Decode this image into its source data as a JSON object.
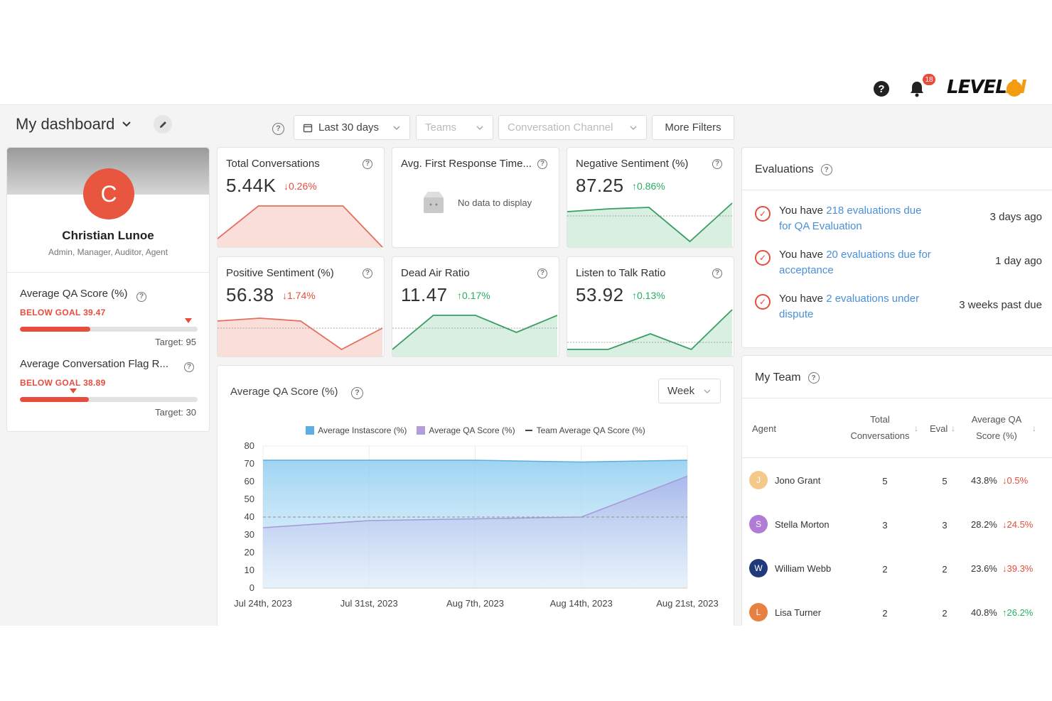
{
  "header": {
    "notifications_count": "18",
    "logo_main": "LEVEL",
    "logo_accent": "AI"
  },
  "toolbar": {
    "dashboard_title": "My dashboard",
    "date_filter": "Last 30 days",
    "teams_filter": "Teams",
    "channel_filter": "Conversation Channel",
    "more_filters": "More Filters"
  },
  "profile": {
    "initial": "C",
    "name": "Christian Lunoe",
    "roles": "Admin, Manager, Auditor, Agent",
    "goals": [
      {
        "label": "Average QA Score (%)",
        "status": "BELOW GOAL 39.47",
        "progress": 0.395,
        "target": "Target: 95"
      },
      {
        "label": "Average Conversation Flag R...",
        "status": "BELOW GOAL 38.89",
        "progress": 0.389,
        "target": "Target: 30"
      }
    ]
  },
  "metrics": {
    "total_conversations": {
      "title": "Total Conversations",
      "value": "5.44K",
      "delta": "↓0.26%"
    },
    "first_response": {
      "title": "Avg. First Response Time...",
      "empty": "No data to display"
    },
    "negative_sentiment": {
      "title": "Negative Sentiment (%)",
      "value": "87.25",
      "delta": "↑0.86%"
    },
    "positive_sentiment": {
      "title": "Positive Sentiment (%)",
      "value": "56.38",
      "delta": "↓1.74%"
    },
    "dead_air": {
      "title": "Dead Air Ratio",
      "value": "11.47",
      "delta": "↑0.17%"
    },
    "listen_talk": {
      "title": "Listen to Talk Ratio",
      "value": "53.92",
      "delta": "↑0.13%"
    }
  },
  "qa_chart": {
    "title": "Average QA Score (%)",
    "period": "Week",
    "legend": [
      "Average Instascore (%)",
      "Average QA Score (%)",
      "Team Average QA Score (%)"
    ]
  },
  "chart_data": {
    "type": "area",
    "title": "Average QA Score (%)",
    "categories": [
      "Jul 24th, 2023",
      "Jul 31st, 2023",
      "Aug 7th, 2023",
      "Aug 14th, 2023",
      "Aug 21st, 2023"
    ],
    "ylim": [
      0,
      80
    ],
    "yticks": [
      0,
      10,
      20,
      30,
      40,
      50,
      60,
      70,
      80
    ],
    "series": [
      {
        "name": "Average Instascore (%)",
        "values": [
          72,
          72,
          72,
          71,
          72
        ],
        "color": "#5dade2"
      },
      {
        "name": "Average QA Score (%)",
        "values": [
          34,
          38,
          39,
          40,
          63
        ],
        "color": "#b39ddb"
      },
      {
        "name": "Team Average QA Score (%)",
        "values": [
          40,
          40,
          40,
          40,
          40
        ],
        "color": "#9e9e9e"
      }
    ]
  },
  "evaluations": {
    "title": "Evaluations",
    "items": [
      {
        "pre": "You have ",
        "link": "218 evaluations due for QA Evaluation",
        "time": "3 days ago"
      },
      {
        "pre": "You have ",
        "link": "20 evaluations due for acceptance",
        "time": "1 day ago"
      },
      {
        "pre": "You have ",
        "link": "2 evaluations under dispute",
        "time": "3 weeks past due"
      }
    ]
  },
  "team": {
    "title": "My Team",
    "columns": {
      "agent": "Agent",
      "total": "Total Conversations",
      "eval": "Eval",
      "score": "Average QA Score (%)"
    },
    "rows": [
      {
        "initial": "J",
        "name": "Jono Grant",
        "conversations": "5",
        "eval": "5",
        "score": "43.8%",
        "delta": "↓0.5%",
        "trend": "down",
        "color": "#f5c98a"
      },
      {
        "initial": "S",
        "name": "Stella Morton",
        "conversations": "3",
        "eval": "3",
        "score": "28.2%",
        "delta": "↓24.5%",
        "trend": "down",
        "color": "#b07cd6"
      },
      {
        "initial": "W",
        "name": "William Webb",
        "conversations": "2",
        "eval": "2",
        "score": "23.6%",
        "delta": "↓39.3%",
        "trend": "down",
        "color": "#1f3a7a"
      },
      {
        "initial": "L",
        "name": "Lisa Turner",
        "conversations": "2",
        "eval": "2",
        "score": "40.8%",
        "delta": "↑26.2%",
        "trend": "up",
        "color": "#e8813f"
      }
    ]
  }
}
